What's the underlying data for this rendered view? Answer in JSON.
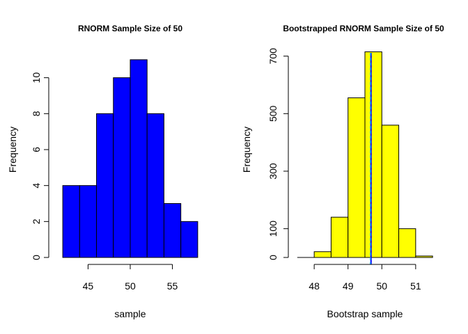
{
  "chart_data": [
    {
      "type": "bar",
      "title": "RNORM Sample Size of 50",
      "xlabel": "sample",
      "ylabel": "Frequency",
      "bin_edges": [
        42,
        44,
        46,
        48,
        50,
        52,
        54,
        56,
        58
      ],
      "values": [
        4,
        4,
        8,
        10,
        11,
        8,
        3,
        2
      ],
      "xlim": [
        41,
        59
      ],
      "ylim": [
        0,
        12
      ],
      "x_ticks": [
        45,
        50,
        55
      ],
      "y_ticks": [
        0,
        2,
        4,
        6,
        8,
        10
      ],
      "bar_color": "#0000ff",
      "grid": false
    },
    {
      "type": "bar",
      "title": "Bootstrapped RNORM Sample Size of 50",
      "xlabel": "Bootstrap sample",
      "ylabel": "Frequency",
      "bin_edges": [
        47.5,
        48.0,
        48.5,
        49.0,
        49.5,
        50.0,
        50.5,
        51.0,
        51.5
      ],
      "values": [
        0,
        20,
        140,
        555,
        715,
        460,
        100,
        5
      ],
      "xlim": [
        47.4,
        51.6
      ],
      "ylim": [
        0,
        750
      ],
      "x_ticks": [
        48,
        49,
        50,
        51
      ],
      "y_ticks": [
        0,
        100,
        300,
        500,
        700
      ],
      "bar_color": "#ffff00",
      "grid": false,
      "reference_lines": [
        {
          "x": 49.68,
          "color": "#0000ff",
          "style": "solid"
        },
        {
          "x": 49.66,
          "color": "#00bfff",
          "style": "dashed"
        }
      ]
    }
  ]
}
